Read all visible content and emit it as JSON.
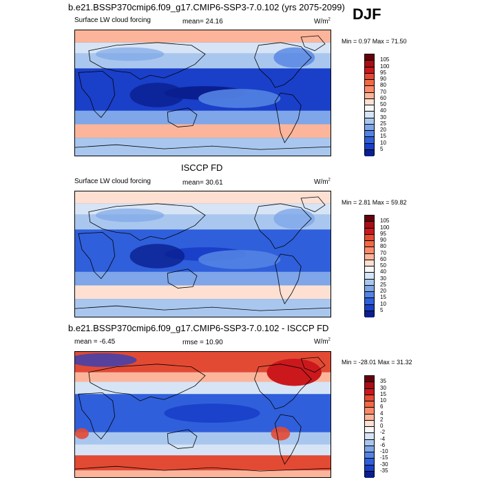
{
  "season": "DJF",
  "units_base": "W/m",
  "units_exp": "2",
  "panels": [
    {
      "title": "b.e21.BSSP370cmip6.f09_g17.CMIP6-SSP3-7.0.102 (yrs 2075-2099)",
      "left_label": "Surface LW cloud forcing",
      "stat_text": "mean=  24.16",
      "minmax": "Min =   0.97 Max =  71.50",
      "kind": "abs"
    },
    {
      "title": "ISCCP FD",
      "left_label": "Surface LW cloud forcing",
      "stat_text": "mean=  30.61",
      "minmax": "Min =   2.81 Max =  59.82",
      "kind": "abs"
    },
    {
      "title": "b.e21.BSSP370cmip6.f09_g17.CMIP6-SSP3-7.0.102 - ISCCP FD",
      "left_label": "mean =  -6.45",
      "stat_text": "rmse =  10.90",
      "minmax": "Min = -28.01 Max =  31.32",
      "kind": "diff"
    }
  ],
  "colorbars": {
    "abs": {
      "levels": [
        "105",
        "100",
        "95",
        "90",
        "80",
        "70",
        "60",
        "50",
        "40",
        "30",
        "25",
        "20",
        "15",
        "10",
        "5"
      ],
      "colors": [
        "#67000d",
        "#a50f15",
        "#cb181d",
        "#e34a33",
        "#f16945",
        "#fb8a6b",
        "#fcb59a",
        "#fde0d2",
        "#f7f7f7",
        "#d6e4f5",
        "#a9c7ee",
        "#7ea6e8",
        "#5383e3",
        "#2f5fdb",
        "#1a3fc9",
        "#0a1f8f"
      ]
    },
    "diff": {
      "levels": [
        "35",
        "30",
        "15",
        "10",
        "6",
        "4",
        "2",
        "0",
        "-2",
        "-4",
        "-6",
        "-10",
        "-15",
        "-30",
        "-35"
      ],
      "colors": [
        "#67000d",
        "#a50f15",
        "#cb181d",
        "#e34a33",
        "#f16945",
        "#fb8a6b",
        "#fcb59a",
        "#fde0d2",
        "#f7f7f7",
        "#d6e4f5",
        "#a9c7ee",
        "#7ea6e8",
        "#5383e3",
        "#2f5fdb",
        "#1a3fc9",
        "#0a1f8f"
      ]
    }
  },
  "chart_data": [
    {
      "type": "heatmap",
      "title": "b.e21.BSSP370cmip6.f09_g17.CMIP6-SSP3-7.0.102 (yrs 2075-2099)",
      "subtitle": "Surface LW cloud forcing",
      "mean": 24.16,
      "min": 0.97,
      "max": 71.5,
      "levels": [
        5,
        10,
        15,
        20,
        25,
        30,
        40,
        50,
        60,
        70,
        80,
        90,
        95,
        100,
        105
      ],
      "lon_range": [
        0,
        360
      ],
      "lat_range": [
        -90,
        90
      ]
    },
    {
      "type": "heatmap",
      "title": "ISCCP FD",
      "subtitle": "Surface LW cloud forcing",
      "mean": 30.61,
      "min": 2.81,
      "max": 59.82,
      "levels": [
        5,
        10,
        15,
        20,
        25,
        30,
        40,
        50,
        60,
        70,
        80,
        90,
        95,
        100,
        105
      ],
      "lon_range": [
        0,
        360
      ],
      "lat_range": [
        -90,
        90
      ]
    },
    {
      "type": "heatmap",
      "title": "b.e21.BSSP370cmip6.f09_g17.CMIP6-SSP3-7.0.102 - ISCCP FD",
      "mean": -6.45,
      "rmse": 10.9,
      "min": -28.01,
      "max": 31.32,
      "levels": [
        -35,
        -30,
        -15,
        -10,
        -6,
        -4,
        -2,
        0,
        2,
        4,
        6,
        10,
        15,
        30,
        35
      ],
      "lon_range": [
        0,
        360
      ],
      "lat_range": [
        -90,
        90
      ]
    }
  ]
}
